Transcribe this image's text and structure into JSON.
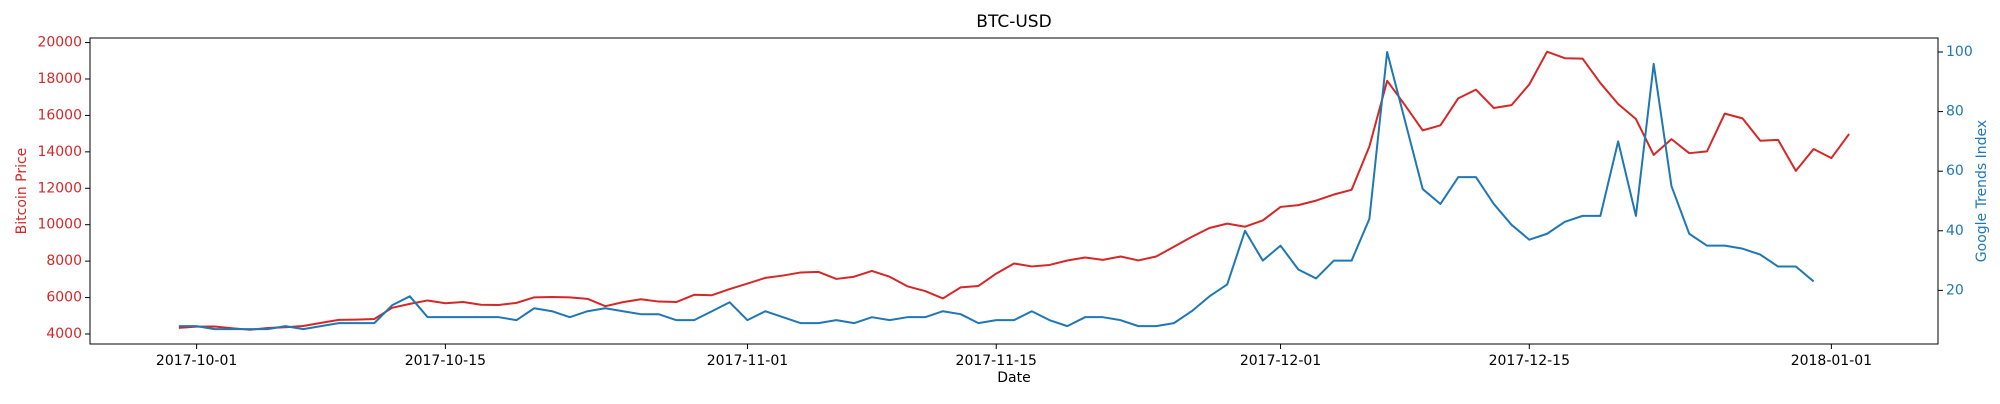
{
  "chart_data": {
    "type": "line",
    "title": "BTC-USD",
    "x_label": "Date",
    "y_label": "Bitcoin Price",
    "y2_label": "Google Trends Index",
    "x": [
      "2017-09-30",
      "2017-10-01",
      "2017-10-02",
      "2017-10-03",
      "2017-10-04",
      "2017-10-05",
      "2017-10-06",
      "2017-10-07",
      "2017-10-08",
      "2017-10-09",
      "2017-10-10",
      "2017-10-11",
      "2017-10-12",
      "2017-10-13",
      "2017-10-14",
      "2017-10-15",
      "2017-10-16",
      "2017-10-17",
      "2017-10-18",
      "2017-10-19",
      "2017-10-20",
      "2017-10-21",
      "2017-10-22",
      "2017-10-23",
      "2017-10-24",
      "2017-10-25",
      "2017-10-26",
      "2017-10-27",
      "2017-10-28",
      "2017-10-29",
      "2017-10-30",
      "2017-10-31",
      "2017-11-01",
      "2017-11-02",
      "2017-11-03",
      "2017-11-04",
      "2017-11-05",
      "2017-11-06",
      "2017-11-07",
      "2017-11-08",
      "2017-11-09",
      "2017-11-10",
      "2017-11-11",
      "2017-11-12",
      "2017-11-13",
      "2017-11-14",
      "2017-11-15",
      "2017-11-16",
      "2017-11-17",
      "2017-11-18",
      "2017-11-19",
      "2017-11-20",
      "2017-11-21",
      "2017-11-22",
      "2017-11-23",
      "2017-11-24",
      "2017-11-25",
      "2017-11-26",
      "2017-11-27",
      "2017-11-28",
      "2017-11-29",
      "2017-11-30",
      "2017-12-01",
      "2017-12-02",
      "2017-12-03",
      "2017-12-04",
      "2017-12-05",
      "2017-12-06",
      "2017-12-07",
      "2017-12-08",
      "2017-12-09",
      "2017-12-10",
      "2017-12-11",
      "2017-12-12",
      "2017-12-13",
      "2017-12-14",
      "2017-12-15",
      "2017-12-16",
      "2017-12-17",
      "2017-12-18",
      "2017-12-19",
      "2017-12-20",
      "2017-12-21",
      "2017-12-22",
      "2017-12-23",
      "2017-12-24",
      "2017-12-25",
      "2017-12-26",
      "2017-12-27",
      "2017-12-28",
      "2017-12-29",
      "2017-12-30",
      "2017-12-31",
      "2018-01-01",
      "2018-01-02"
    ],
    "series": [
      {
        "name": "Bitcoin Price",
        "color": "#d62728",
        "axis": "y",
        "values": [
          4338,
          4403,
          4409,
          4318,
          4229,
          4329,
          4371,
          4439,
          4611,
          4773,
          4790,
          4822,
          5437,
          5652,
          5841,
          5687,
          5755,
          5605,
          5591,
          5708,
          6011,
          6031,
          6009,
          5930,
          5527,
          5750,
          5904,
          5780,
          5753,
          6153,
          6130,
          6468,
          6767,
          7079,
          7207,
          7379,
          7407,
          7022,
          7144,
          7459,
          7143,
          6618,
          6357,
          5950,
          6559,
          6635,
          7315,
          7871,
          7708,
          7790,
          8036,
          8200,
          8071,
          8253,
          8038,
          8253,
          8790,
          9330,
          9818,
          10058,
          9888,
          10233,
          10975,
          11074,
          11323,
          11657,
          11916,
          14291,
          17899,
          16569,
          15178,
          15455,
          16936,
          17415,
          16408,
          16564,
          17706,
          19498,
          19140,
          19115,
          17776,
          16624,
          15802,
          13831,
          14699,
          13926,
          14026,
          16099,
          15838,
          14606,
          14656,
          12952,
          14156,
          13657,
          14982
        ]
      },
      {
        "name": "Google Trends Index",
        "color": "#1f77b4",
        "axis": "y2",
        "values": [
          8,
          8,
          7,
          7,
          7,
          7,
          8,
          7,
          8,
          9,
          9,
          9,
          15,
          18,
          11,
          11,
          11,
          11,
          11,
          10,
          14,
          13,
          11,
          13,
          14,
          13,
          12,
          12,
          10,
          10,
          13,
          16,
          10,
          13,
          11,
          9,
          9,
          10,
          9,
          11,
          10,
          11,
          11,
          13,
          12,
          9,
          10,
          10,
          13,
          10,
          8,
          11,
          11,
          10,
          8,
          8,
          9,
          13,
          18,
          22,
          40,
          30,
          35,
          27,
          24,
          30,
          30,
          44,
          100,
          77,
          54,
          49,
          58,
          58,
          49,
          42,
          37,
          39,
          43,
          45,
          45,
          70,
          45,
          96,
          55,
          39,
          35,
          35,
          34,
          32,
          28,
          28,
          23,
          null,
          null
        ]
      }
    ],
    "xlim": [
      "2017-09-25",
      "2018-01-07"
    ],
    "xticks": [
      "2017-10-01",
      "2017-10-15",
      "2017-11-01",
      "2017-11-15",
      "2017-12-01",
      "2017-12-15",
      "2018-01-01"
    ],
    "ylim": [
      3450,
      20250
    ],
    "yticks": [
      4000,
      6000,
      8000,
      10000,
      12000,
      14000,
      16000,
      18000,
      20000
    ],
    "y2lim": [
      2,
      104.7
    ],
    "y2ticks": [
      20,
      40,
      60,
      80,
      100
    ]
  }
}
